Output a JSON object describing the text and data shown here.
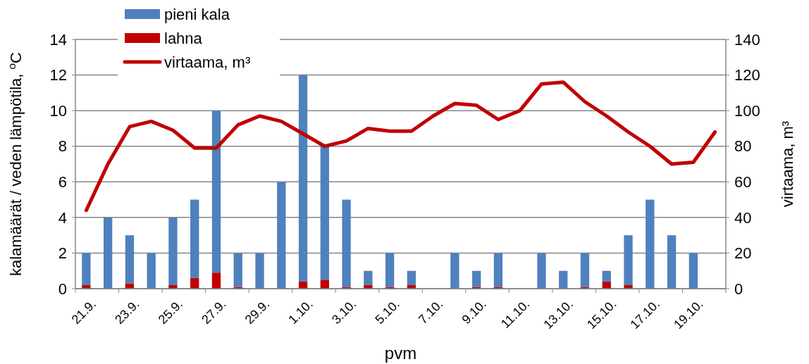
{
  "chart_data": {
    "type": "bar",
    "stacked": true,
    "xlabel": "pvm",
    "ylabel": "kalamäärät / veden lämpötila, $^{o}$C",
    "y2label": "virtaama, m³",
    "categories": [
      "21.9.",
      null,
      "23.9.",
      null,
      "25.9.",
      null,
      "27.9.",
      null,
      "29.9.",
      null,
      "1.10.",
      null,
      "3.10.",
      null,
      "5.10.",
      null,
      "7.10.",
      null,
      "9.10.",
      null,
      "11.10.",
      null,
      "13.10.",
      null,
      "15.10.",
      null,
      "17.10.",
      null,
      "19.10.",
      null
    ],
    "series": [
      {
        "name": "lahna",
        "color": "#c00000",
        "values": [
          0.2,
          0,
          0.3,
          0,
          0.2,
          0.6,
          0.9,
          0.1,
          0,
          0,
          0.4,
          0.5,
          0.1,
          0.2,
          0.1,
          0.2,
          0,
          0,
          0.1,
          0.1,
          0,
          0,
          0,
          0.1,
          0.4,
          0.2,
          0,
          0,
          0,
          0
        ]
      },
      {
        "name": "pieni kala",
        "color": "#4f81bd",
        "values": [
          1.8,
          4,
          2.7,
          2,
          3.8,
          4.4,
          9.1,
          1.9,
          2,
          6,
          11.6,
          7.5,
          4.9,
          0.8,
          1.9,
          0.8,
          0,
          2,
          0.9,
          1.9,
          0,
          2,
          1,
          1.9,
          0.6,
          2.8,
          5,
          3,
          2,
          0
        ]
      },
      {
        "name": "virtaama, m³",
        "type": "line",
        "axis": "y2",
        "color": "#c00000",
        "values": [
          44,
          70,
          91,
          94,
          89,
          79,
          79,
          92,
          97,
          94,
          87,
          80,
          83,
          90,
          88.5,
          88.5,
          97,
          104,
          103,
          95,
          100,
          115,
          116,
          105,
          97,
          88,
          80,
          70,
          71,
          88
        ]
      }
    ],
    "ylim": [
      0,
      14
    ],
    "yticks": [
      0,
      2,
      4,
      6,
      8,
      10,
      12,
      14
    ],
    "y2lim": [
      0,
      140
    ],
    "y2ticks": [
      0,
      20,
      40,
      60,
      80,
      100,
      120,
      140
    ],
    "grid": "y",
    "legend": "top left"
  }
}
